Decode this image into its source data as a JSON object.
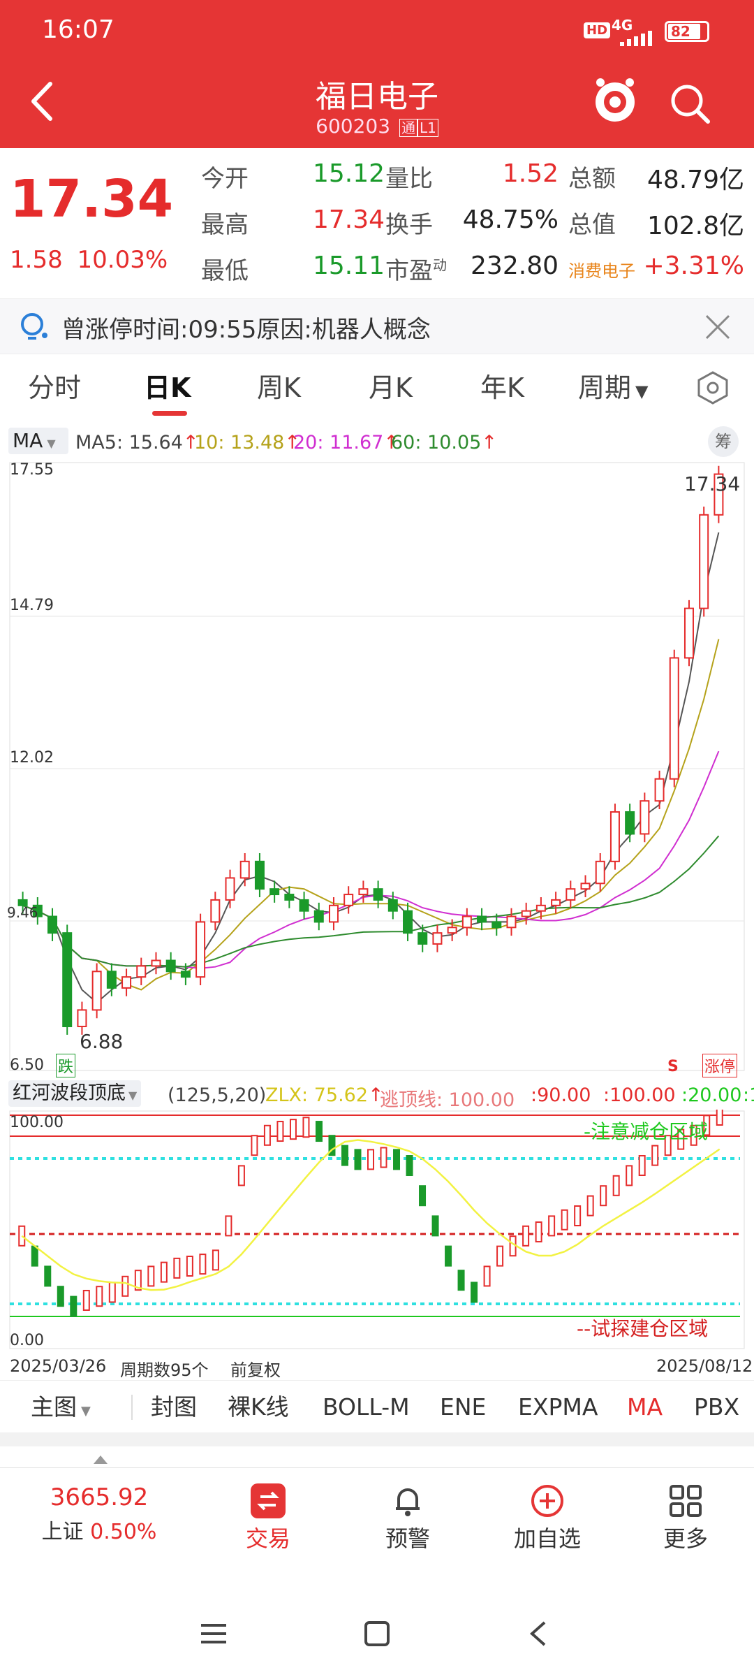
{
  "status_bar": {
    "time": "16:07",
    "network": "4G",
    "hd": "HD",
    "battery": "82"
  },
  "header": {
    "stock_name": "福日电子",
    "stock_code": "600203",
    "badge_tong": "通",
    "badge_level": "L1"
  },
  "quote": {
    "price": "17.34",
    "change": "1.58",
    "change_pct": "10.03%",
    "rows": [
      {
        "l1": "今开",
        "v1": "15.12",
        "l2": "量比",
        "v2": "1.52",
        "l3": "总额",
        "v3": "48.79亿"
      },
      {
        "l1": "最高",
        "v1": "17.34",
        "l2": "换手",
        "v2": "48.75%",
        "l3": "总值",
        "v3": "102.8亿"
      },
      {
        "l1": "最低",
        "v1": "15.11",
        "l2": "市盈",
        "l2_sup": "动",
        "v2": "232.80",
        "l3": "消费电子",
        "v3": "+3.31%"
      }
    ]
  },
  "notice": {
    "text": "曾涨停时间:09:55原因:机器人概念"
  },
  "tabs": [
    "分时",
    "日K",
    "周K",
    "月K",
    "年K",
    "周期"
  ],
  "ma_legend": {
    "selector": "MA",
    "ma5": "MA5: 15.64",
    "ma10": "10: 13.48",
    "ma20": "20: 11.67",
    "ma60": "60: 10.05",
    "chip_btn": "筹"
  },
  "price_axis": {
    "top": "17.55",
    "mid1": "14.79",
    "mid2": "12.02",
    "bottom": "6.50",
    "left_mark": "9.46"
  },
  "chart_labels": {
    "high": "17.34",
    "low": "6.88",
    "die_tag": "跌",
    "s_tag": "S",
    "zhang_tag": "涨停"
  },
  "indicator": {
    "name": "红河波段顶底",
    "params": "(125,5,20)",
    "zlx": "ZLX: 75.62",
    "line_label": "逃顶线: 100.00",
    "v90": ":90.00",
    "v100": ":100.00",
    "v20": ":20.00",
    "v_tail": ":1",
    "axis_top": "100.00",
    "axis_bottom": "0.00",
    "zone_top": "-注意减仓区域",
    "zone_bottom": "--试探建仓区域"
  },
  "date_axis": {
    "start": "2025/03/26",
    "period_count": "周期数95个",
    "adjust": "前复权",
    "end": "2025/08/12"
  },
  "func_bar": [
    "主图",
    "封图",
    "裸K线",
    "BOLL-M",
    "ENE",
    "EXPMA",
    "MA",
    "PBX"
  ],
  "bottom_nav": {
    "index_value": "3665.92",
    "index_name": "上证",
    "index_pct": "0.50%",
    "trade": "交易",
    "alert": "预警",
    "add_fav": "加自选",
    "more": "更多"
  },
  "colors": {
    "up": "#e52c2c",
    "down": "#1a9a2a",
    "header_bg": "#e53535",
    "ma5": "#555555",
    "ma10": "#b5a21a",
    "ma20": "#d02ed0",
    "ma60": "#2e8b2e"
  }
}
